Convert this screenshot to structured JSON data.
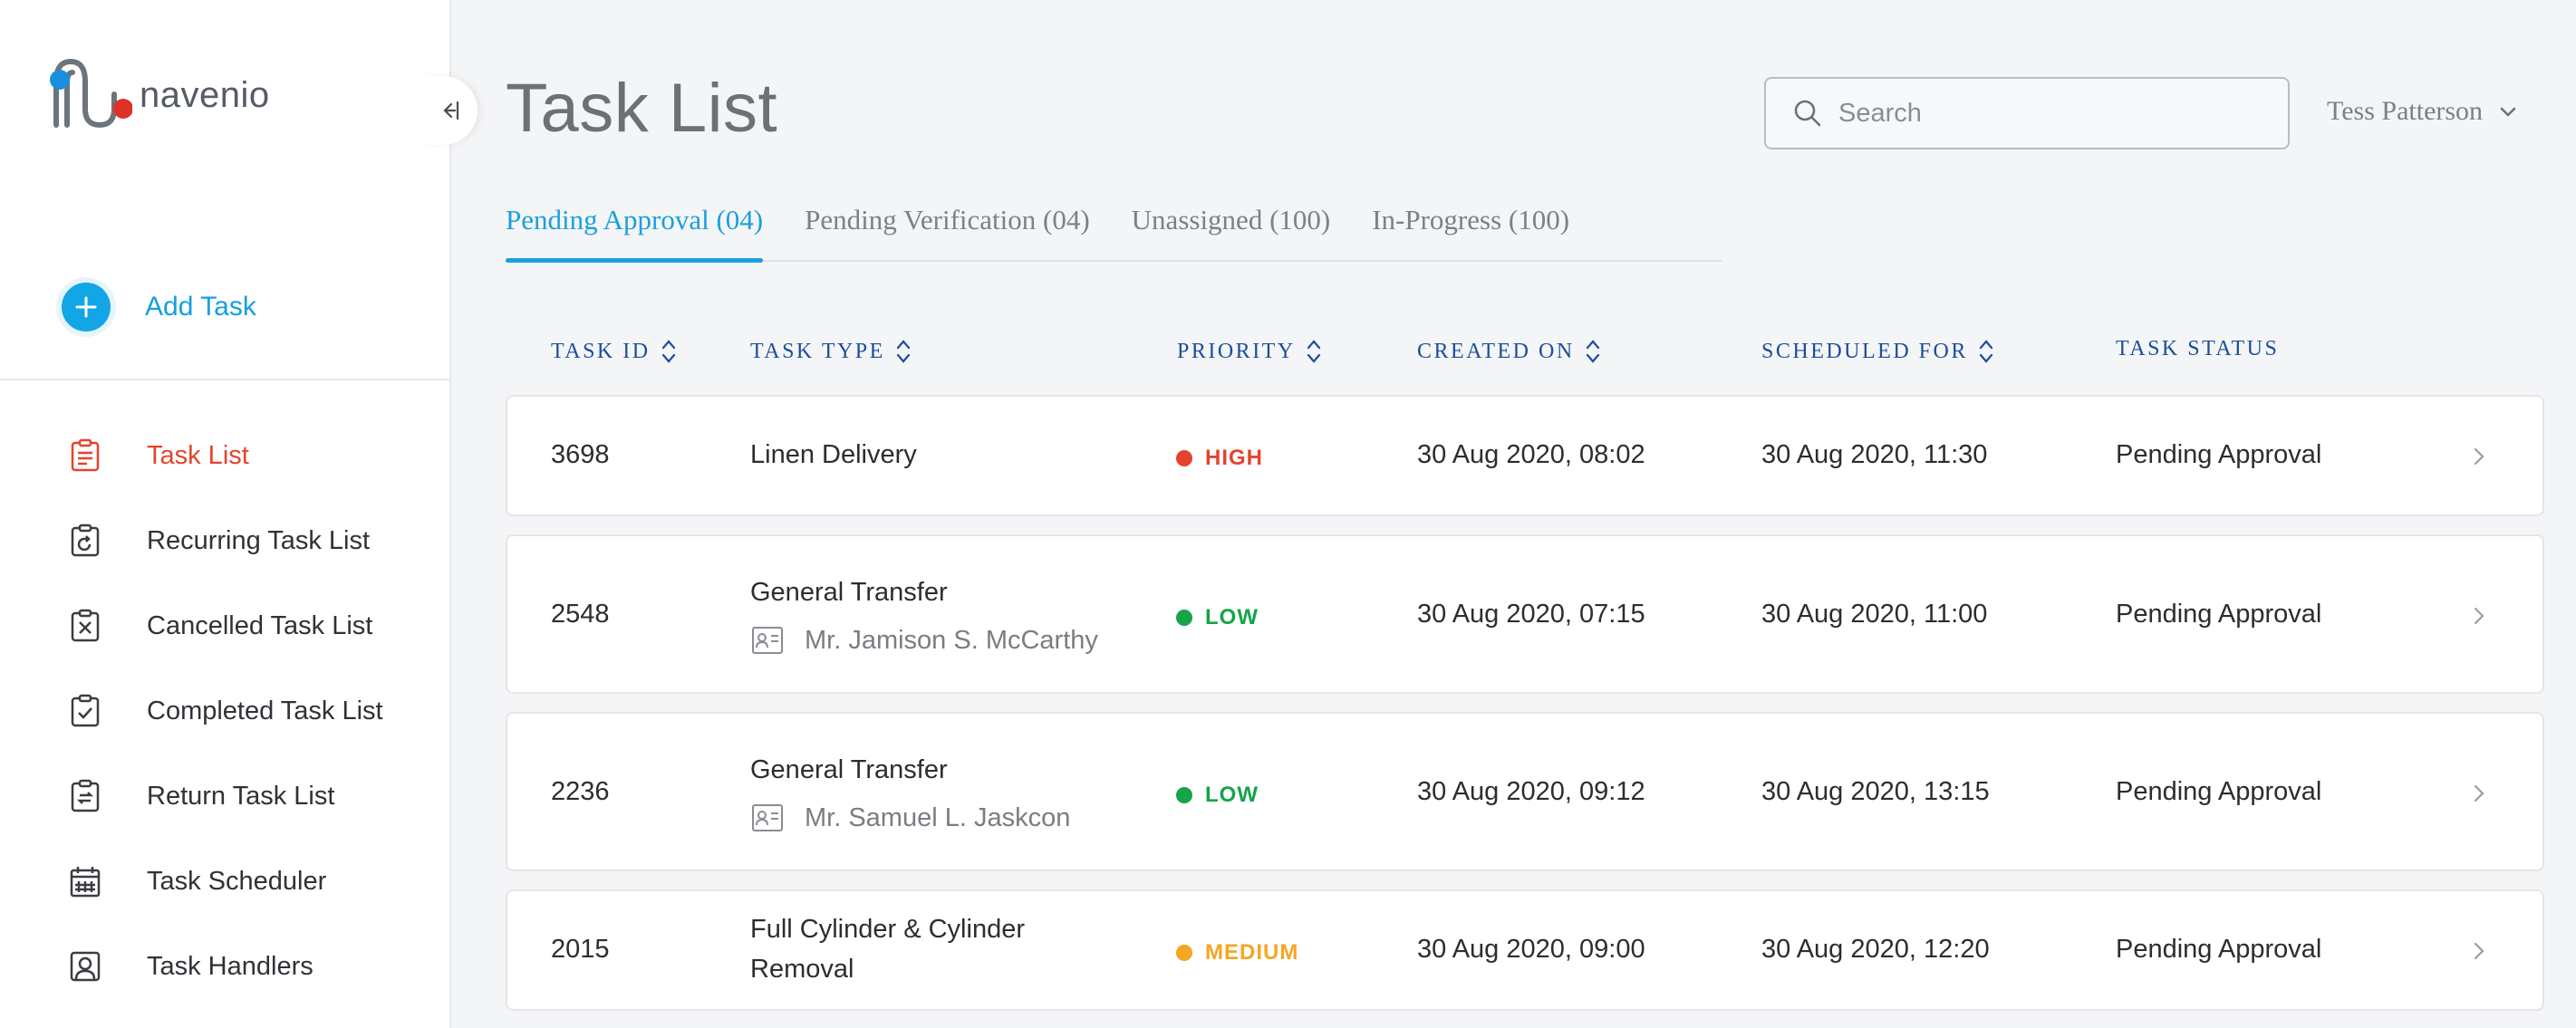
{
  "brand": {
    "name": "navenio"
  },
  "sidebar": {
    "add_task_label": "Add Task",
    "items": [
      {
        "label": "Task List",
        "icon": "clipboard-list-icon",
        "active": true
      },
      {
        "label": "Recurring Task List",
        "icon": "clipboard-recurring-icon",
        "active": false
      },
      {
        "label": "Cancelled Task List",
        "icon": "clipboard-cancel-icon",
        "active": false
      },
      {
        "label": "Completed Task List",
        "icon": "clipboard-check-icon",
        "active": false
      },
      {
        "label": "Return Task List",
        "icon": "clipboard-return-icon",
        "active": false
      },
      {
        "label": "Task Scheduler",
        "icon": "calendar-icon",
        "active": false
      },
      {
        "label": "Task Handlers",
        "icon": "user-badge-icon",
        "active": false
      }
    ]
  },
  "header": {
    "title": "Task List",
    "search_placeholder": "Search",
    "user_name": "Tess Patterson"
  },
  "tabs": [
    {
      "label": "Pending Approval (04)",
      "active": true
    },
    {
      "label": "Pending Verification (04)",
      "active": false
    },
    {
      "label": "Unassigned (100)",
      "active": false
    },
    {
      "label": "In-Progress (100)",
      "active": false
    }
  ],
  "table": {
    "columns": [
      "TASK ID",
      "TASK TYPE",
      "PRIORITY",
      "CREATED ON",
      "SCHEDULED FOR",
      "TASK STATUS"
    ],
    "rows": [
      {
        "id": "3698",
        "type": "Linen Delivery",
        "type_line2": "",
        "patient": "",
        "priority": "HIGH",
        "created": "30 Aug 2020,  08:02",
        "scheduled": "30 Aug 2020,  11:30",
        "status": "Pending Approval"
      },
      {
        "id": "2548",
        "type": "General Transfer",
        "type_line2": "",
        "patient": "Mr. Jamison S. McCarthy",
        "priority": "LOW",
        "created": "30 Aug 2020,  07:15",
        "scheduled": "30 Aug 2020,  11:00",
        "status": "Pending Approval"
      },
      {
        "id": "2236",
        "type": "General Transfer",
        "type_line2": "",
        "patient": "Mr. Samuel L. Jaskcon",
        "priority": "LOW",
        "created": "30 Aug 2020,  09:12",
        "scheduled": "30 Aug 2020,  13:15",
        "status": "Pending Approval"
      },
      {
        "id": "2015",
        "type": "Full Cylinder & Cylinder",
        "type_line2": "Removal",
        "patient": "",
        "priority": "MEDIUM",
        "created": "30 Aug 2020,  09:00",
        "scheduled": "30 Aug 2020,  12:20",
        "status": "Pending Approval"
      }
    ]
  },
  "colors": {
    "accent_blue": "#1aa0dc",
    "active_nav": "#e5432e",
    "header_text": "#1b4e9b",
    "priority_high": "#e5432e",
    "priority_low": "#16a34a",
    "priority_medium": "#f5a623"
  }
}
